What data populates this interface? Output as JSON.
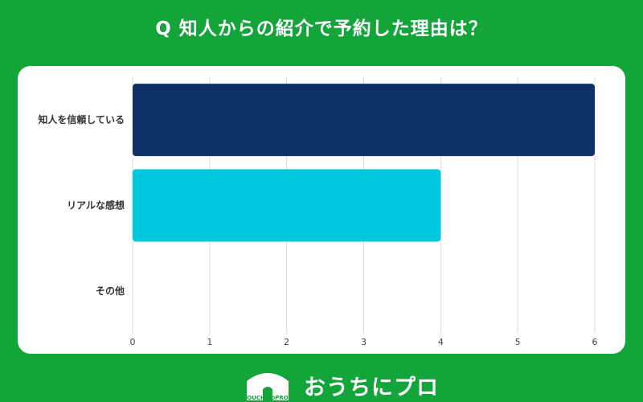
{
  "title": "Q 知人からの紹介で予約した理由は？",
  "brand": {
    "name": "おうちにプロ",
    "logo_text": "OUCHInoPRO"
  },
  "colors": {
    "background": "#13a43a",
    "card": "#ffffff",
    "grid": "#d9d9d9"
  },
  "chart_data": {
    "type": "bar",
    "orientation": "horizontal",
    "categories": [
      "知人を信頼している",
      "リアルな感想",
      "その他"
    ],
    "values": [
      6,
      4,
      0
    ],
    "colors": [
      "#0d3366",
      "#00c8de",
      "#00c8de"
    ],
    "xlim": [
      0,
      6
    ],
    "xticks": [
      "0",
      "1",
      "2",
      "3",
      "4",
      "5",
      "6"
    ],
    "grid": true,
    "legend": "none"
  }
}
